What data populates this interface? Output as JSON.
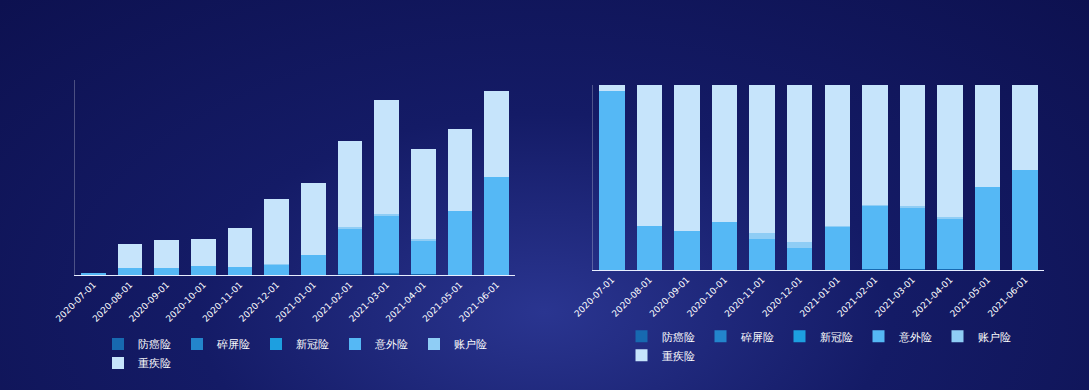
{
  "chart_data": [
    {
      "type": "bar",
      "stacked": true,
      "legend": "bottom",
      "tick_labels": "x",
      "grid": false,
      "categories": [
        "2020-07-01",
        "2020-08-01",
        "2020-09-01",
        "2020-10-01",
        "2020-11-01",
        "2020-12-01",
        "2021-01-01",
        "2021-02-01",
        "2021-03-01",
        "2021-04-01",
        "2021-05-01",
        "2021-06-01"
      ],
      "ylim": [
        0,
        200
      ],
      "series": [
        {
          "name": "防癌险",
          "color": "#1769b0",
          "values": [
            0,
            0,
            0,
            0,
            0,
            0,
            0,
            1,
            1,
            1,
            0,
            0
          ]
        },
        {
          "name": "碎屏险",
          "color": "#2385cc",
          "values": [
            0,
            0,
            0,
            0,
            0,
            0,
            0,
            0,
            1,
            0,
            0,
            0
          ]
        },
        {
          "name": "新冠险",
          "color": "#1d9fe0",
          "values": [
            0,
            0,
            0,
            0,
            0,
            0,
            0,
            0,
            0,
            0,
            0,
            0
          ]
        },
        {
          "name": "意外险",
          "color": "#55b8f5",
          "values": [
            2,
            7,
            7,
            9,
            8,
            10,
            21,
            46,
            59,
            34,
            66,
            101
          ]
        },
        {
          "name": "账户险",
          "color": "#8fcdf5",
          "values": [
            0,
            0,
            0,
            0,
            0,
            1,
            0,
            2,
            2,
            2,
            0,
            0
          ]
        },
        {
          "name": "重疾险",
          "color": "#c6e4fb",
          "values": [
            0.1,
            25,
            29,
            28,
            40,
            67,
            73,
            88,
            116,
            92,
            84,
            88
          ]
        }
      ]
    },
    {
      "type": "bar",
      "stacked": true,
      "legend": "bottom",
      "tick_labels": "x",
      "grid": false,
      "categories": [
        "2020-07-01",
        "2020-08-01",
        "2020-09-01",
        "2020-10-01",
        "2020-11-01",
        "2020-12-01",
        "2021-01-01",
        "2021-02-01",
        "2021-03-01",
        "2021-04-01",
        "2021-05-01",
        "2021-06-01"
      ],
      "ylim": [
        0,
        100
      ],
      "series": [
        {
          "name": "防癌险",
          "color": "#1769b0",
          "values": [
            0,
            0,
            0,
            0,
            0,
            0,
            0,
            0.5,
            0.5,
            0.5,
            0,
            0
          ]
        },
        {
          "name": "碎屏险",
          "color": "#2385cc",
          "values": [
            0,
            0,
            0,
            0,
            0,
            0,
            0,
            0,
            0,
            0,
            0,
            0
          ]
        },
        {
          "name": "新冠险",
          "color": "#1d9fe0",
          "values": [
            0,
            0,
            0,
            0,
            0,
            0,
            0,
            0,
            0,
            0,
            0,
            0
          ]
        },
        {
          "name": "意外险",
          "color": "#55b8f5",
          "values": [
            97,
            24,
            21,
            26,
            17,
            12,
            23,
            34,
            33,
            27,
            45,
            54
          ]
        },
        {
          "name": "账户险",
          "color": "#8fcdf5",
          "values": [
            0,
            0,
            0,
            0,
            3,
            3,
            1,
            0.5,
            1,
            1,
            0,
            0
          ]
        },
        {
          "name": "重疾险",
          "color": "#c6e4fb",
          "values": [
            3,
            76,
            79,
            74,
            80,
            85,
            76,
            65,
            65.5,
            71.5,
            55,
            46
          ]
        }
      ]
    }
  ]
}
